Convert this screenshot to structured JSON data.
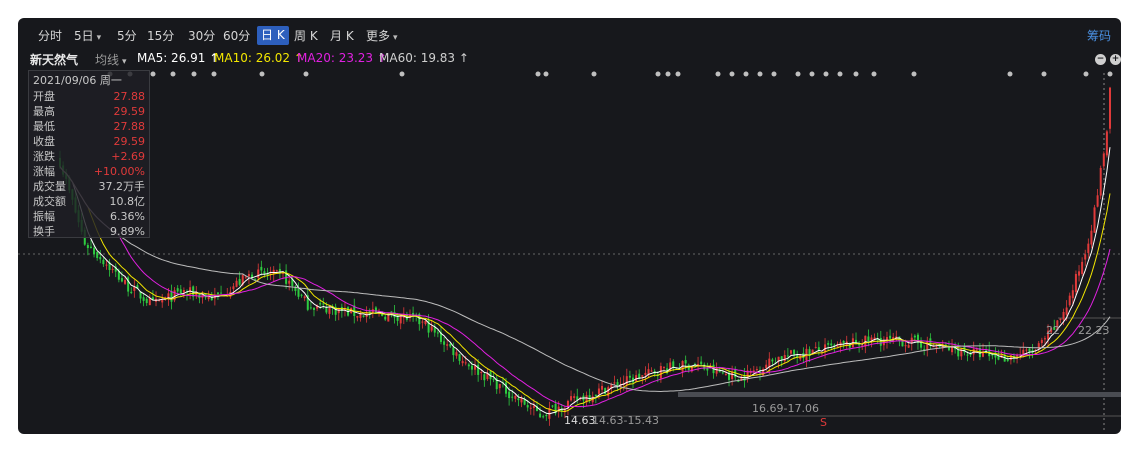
{
  "tabs": [
    {
      "label": "分时",
      "active": false,
      "dropdown": false
    },
    {
      "label": "5日",
      "active": false,
      "dropdown": true
    },
    {
      "label": "5分",
      "active": false,
      "dropdown": false
    },
    {
      "label": "15分",
      "active": false,
      "dropdown": false
    },
    {
      "label": "30分",
      "active": false,
      "dropdown": false
    },
    {
      "label": "60分",
      "active": false,
      "dropdown": false
    },
    {
      "label": "日 K",
      "active": true,
      "dropdown": false
    },
    {
      "label": "周 K",
      "active": false,
      "dropdown": false
    },
    {
      "label": "月 K",
      "active": false,
      "dropdown": false
    },
    {
      "label": "更多",
      "active": false,
      "dropdown": true
    }
  ],
  "chip_button": "筹码",
  "legend": {
    "stock_name": "新天然气",
    "avg_mode": "均线",
    "ma5": "MA5: 26.91 ↑",
    "ma10": "MA10: 26.02 ↑",
    "ma20": "MA20: 23.23 ↑",
    "ma60": "MA60: 19.83 ↑"
  },
  "colors": {
    "ma5": "#ffffff",
    "ma10": "#f2e600",
    "ma20": "#e020e0",
    "ma60": "#bdbdbd",
    "up": "#e03a3a",
    "down": "#2ecc40",
    "accent": "#2d5fbd"
  },
  "info_panel": {
    "date": "2021/09/06 周一",
    "rows": [
      {
        "k": "开盘",
        "v": "27.88",
        "red": true
      },
      {
        "k": "最高",
        "v": "29.59",
        "red": true
      },
      {
        "k": "最低",
        "v": "27.88",
        "red": true
      },
      {
        "k": "收盘",
        "v": "29.59",
        "red": true
      },
      {
        "k": "涨跌",
        "v": "+2.69",
        "red": true
      },
      {
        "k": "涨幅",
        "v": "+10.00%",
        "red": true
      },
      {
        "k": "成交量",
        "v": "37.2万手",
        "red": false
      },
      {
        "k": "成交额",
        "v": "10.8亿",
        "red": false
      },
      {
        "k": "振幅",
        "v": "6.36%",
        "red": false
      },
      {
        "k": "换手",
        "v": "9.89%",
        "red": false
      }
    ]
  },
  "annotations": {
    "low_label": "14.63",
    "range_a": "14.63-15.43",
    "range_b": "16.69-17.06",
    "range_c": "22.23",
    "range_c_prefix": "22",
    "s_marker": "S"
  },
  "chart_data": {
    "type": "candlestick",
    "price_anchors": {
      "top_price": 30.5,
      "low": 14.63
    },
    "keypoints": [
      [
        0,
        26.5
      ],
      [
        8,
        22.8
      ],
      [
        14,
        22.0
      ],
      [
        22,
        20.8
      ],
      [
        30,
        20.0
      ],
      [
        40,
        20.6
      ],
      [
        50,
        20.3
      ],
      [
        62,
        21.4
      ],
      [
        72,
        21.3
      ],
      [
        80,
        20.0
      ],
      [
        95,
        19.6
      ],
      [
        110,
        19.5
      ],
      [
        118,
        19.1
      ],
      [
        130,
        17.5
      ],
      [
        145,
        16.0
      ],
      [
        155,
        15.0
      ],
      [
        165,
        15.6
      ],
      [
        178,
        16.3
      ],
      [
        195,
        17.1
      ],
      [
        205,
        17.3
      ],
      [
        210,
        17.0
      ],
      [
        220,
        16.7
      ],
      [
        232,
        17.6
      ],
      [
        248,
        18.0
      ],
      [
        262,
        18.4
      ],
      [
        275,
        18.3
      ],
      [
        290,
        17.9
      ],
      [
        305,
        17.6
      ],
      [
        315,
        17.9
      ],
      [
        322,
        19.1
      ],
      [
        326,
        20.3
      ],
      [
        331,
        22.4
      ],
      [
        334,
        24.2
      ],
      [
        336,
        26.0
      ],
      [
        338,
        27.9
      ],
      [
        339,
        29.6
      ]
    ],
    "dots_rows": 1
  }
}
